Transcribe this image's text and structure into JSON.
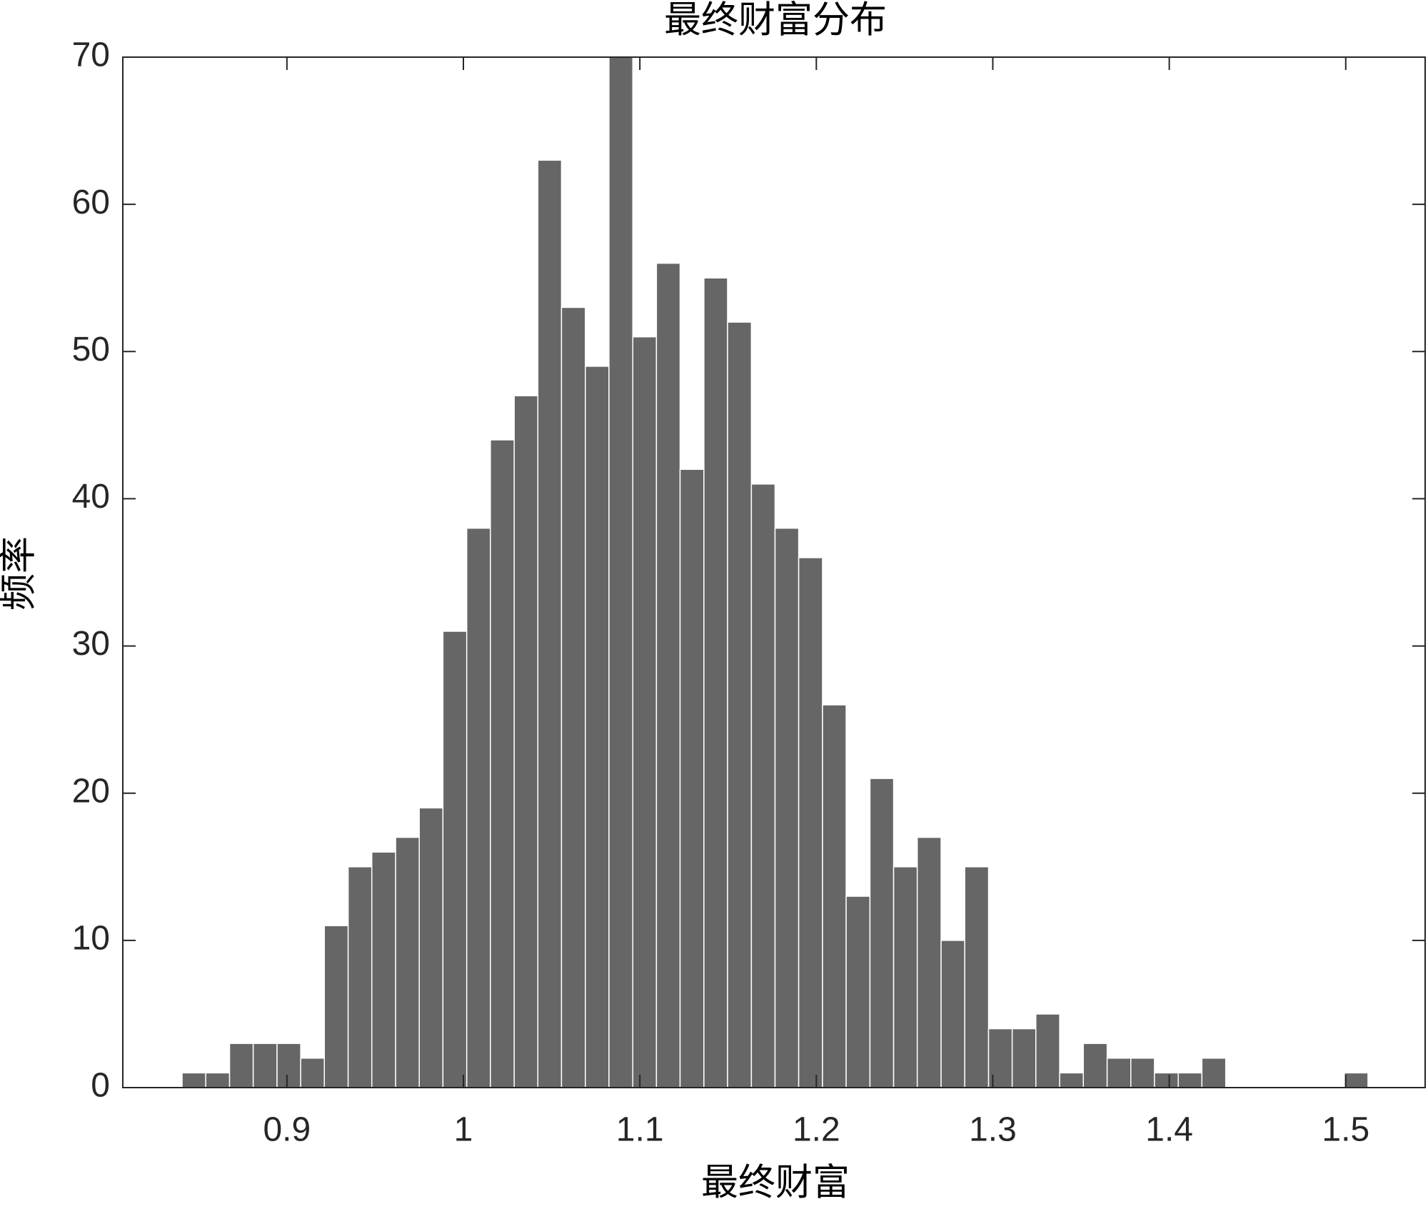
{
  "chart_data": {
    "type": "histogram",
    "title": "最终财富分布",
    "xlabel": "最终财富",
    "ylabel": "频率",
    "bins": [
      0.8406,
      0.854,
      0.8675,
      0.8809,
      0.8944,
      0.9078,
      0.9212,
      0.9347,
      0.9481,
      0.9616,
      0.975,
      0.9884,
      1.0019,
      1.0153,
      1.0288,
      1.0422,
      1.0556,
      1.0691,
      1.0825,
      1.096,
      1.1094,
      1.1228,
      1.1363,
      1.1497,
      1.1632,
      1.1766,
      1.19,
      1.2035,
      1.2169,
      1.2304,
      1.2438,
      1.2572,
      1.2707,
      1.2841,
      1.2976,
      1.311,
      1.3244,
      1.3379,
      1.3513,
      1.3648,
      1.3782,
      1.3916,
      1.4051,
      1.4185,
      1.432,
      1.4454,
      1.4588,
      1.4723,
      1.4857,
      1.4992,
      1.5126
    ],
    "values": [
      1,
      1,
      3,
      3,
      3,
      2,
      11,
      15,
      16,
      17,
      19,
      31,
      38,
      44,
      47,
      63,
      53,
      49,
      70,
      51,
      56,
      42,
      55,
      52,
      41,
      38,
      36,
      26,
      13,
      21,
      15,
      17,
      10,
      15,
      4,
      4,
      5,
      1,
      3,
      2,
      2,
      1,
      1,
      2,
      0,
      0,
      0,
      0,
      0,
      1
    ],
    "color": "#666666",
    "xlim": [
      0.807,
      1.545
    ],
    "xticks": [
      0.9,
      1,
      1.1,
      1.2,
      1.3,
      1.4,
      1.5
    ],
    "ylim": [
      0,
      70
    ],
    "yticks": [
      0,
      10,
      20,
      30,
      40,
      50,
      60,
      70
    ],
    "grid": false
  }
}
